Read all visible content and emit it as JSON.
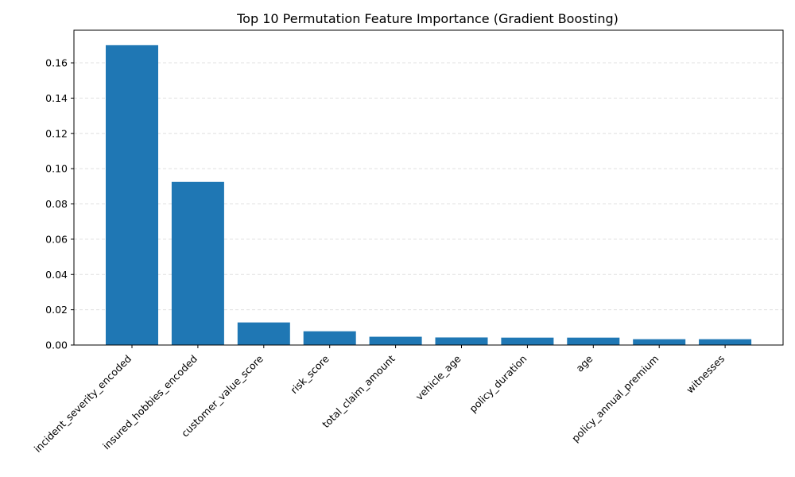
{
  "chart_data": {
    "type": "bar",
    "title": "Top 10 Permutation Feature Importance (Gradient Boosting)",
    "xlabel": "",
    "ylabel": "",
    "categories": [
      "incident_severity_encoded",
      "insured_hobbies_encoded",
      "customer_value_score",
      "risk_score",
      "total_claim_amount",
      "vehicle_age",
      "policy_duration",
      "age",
      "policy_annual_premium",
      "witnesses"
    ],
    "values": [
      0.17,
      0.0925,
      0.0128,
      0.0078,
      0.0047,
      0.0043,
      0.0042,
      0.0042,
      0.0033,
      0.0033
    ],
    "ylim": [
      0,
      0.1785
    ],
    "yticks": [
      0.0,
      0.02,
      0.04,
      0.06,
      0.08,
      0.1,
      0.12,
      0.14,
      0.16
    ],
    "ytick_labels": [
      "0.00",
      "0.02",
      "0.04",
      "0.06",
      "0.08",
      "0.10",
      "0.12",
      "0.14",
      "0.16"
    ],
    "grid": "y-dashed",
    "bar_color": "#1f77b4",
    "grid_color": "#e0e0e0"
  }
}
